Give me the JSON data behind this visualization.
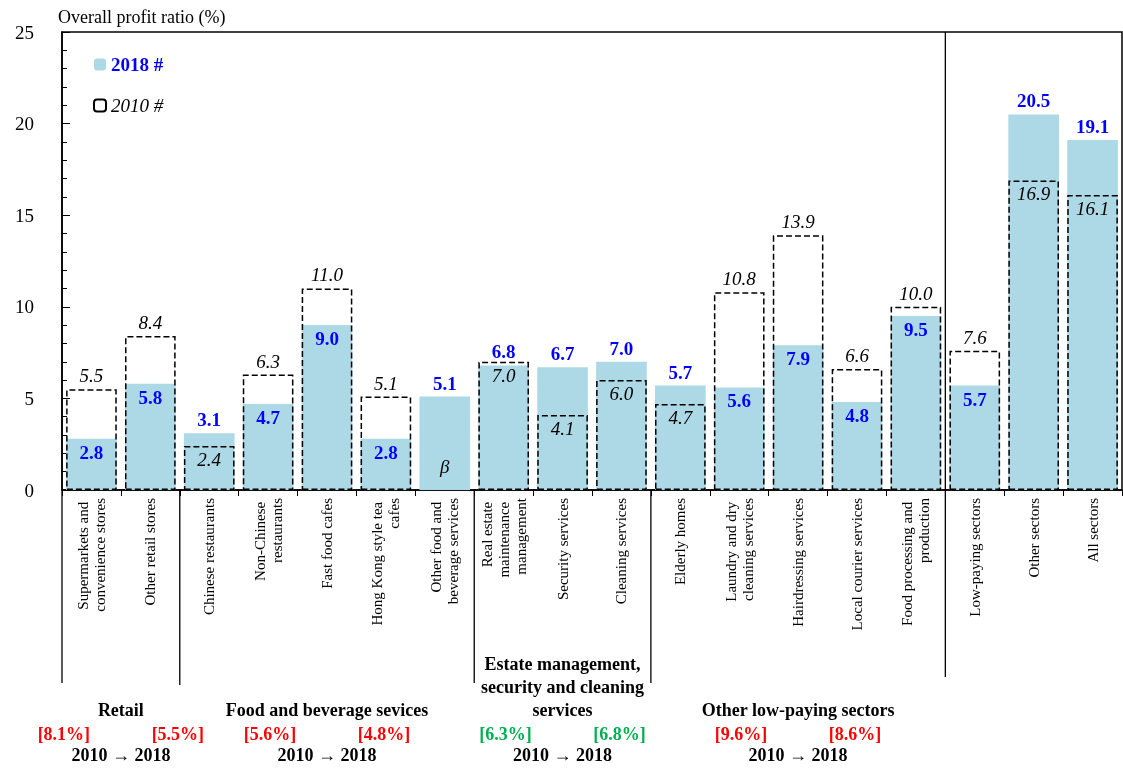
{
  "chart_data": {
    "type": "bar",
    "ylabel": "Overall profit ratio (%)",
    "categories": [
      "Supermarkets and convenience stores",
      "Other retail stores",
      "Chinese restaurants",
      "Non-Chinese restaurants",
      "Fast food cafes",
      "Hong Kong style tea cafes",
      "Other food and beverage services",
      "Real estate maintenance management",
      "Security services",
      "Cleaning services",
      "Elderly homes",
      "Laundry and dry cleaning services",
      "Hairdressing services",
      "Local courier services",
      "Food processing and production",
      "Low-paying sectors",
      "Other sectors",
      "All sectors"
    ],
    "series": [
      {
        "name": "2018 #",
        "color": "#add8e6",
        "values": [
          2.8,
          5.8,
          3.1,
          4.7,
          9.0,
          2.8,
          5.1,
          6.8,
          6.7,
          7.0,
          5.7,
          5.6,
          7.9,
          4.8,
          9.5,
          5.7,
          20.5,
          19.1
        ],
        "value_labels": [
          "2.8",
          "5.8",
          "3.1",
          "4.7",
          "9.0",
          "2.8",
          "5.1",
          "6.8",
          "6.7",
          "7.0",
          "5.7",
          "5.6",
          "7.9",
          "4.8",
          "9.5",
          "5.7",
          "20.5",
          "19.1"
        ]
      },
      {
        "name": "2010 #",
        "color": "#000000",
        "line_style": "dashed",
        "values": [
          5.5,
          8.4,
          2.4,
          6.3,
          11.0,
          5.1,
          null,
          7.0,
          4.1,
          6.0,
          4.7,
          10.8,
          13.9,
          6.6,
          10.0,
          7.6,
          16.9,
          16.1
        ],
        "value_labels": [
          "5.5",
          "8.4",
          "2.4",
          "6.3",
          "11.0",
          "5.1",
          null,
          "7.0",
          "4.1",
          "6.0",
          "4.7",
          "10.8",
          "13.9",
          "6.6",
          "10.0",
          "7.6",
          "16.9",
          "16.1"
        ]
      }
    ],
    "ylim": [
      0,
      25
    ],
    "yticks": [
      0,
      5,
      10,
      15,
      20,
      25
    ],
    "grid": false,
    "legend": "top left",
    "annotations": [
      {
        "text": "β",
        "x": "Other food and beverage services",
        "y": 0
      },
      "Retail",
      "[8.1%]",
      "[5.5%]",
      "2010 → 2018",
      "Food and beverage sevices",
      "[5.6%]",
      "[4.8%]",
      "2010 → 2018",
      "Estate management, security and cleaning services",
      "[6.3%]",
      "[6.8%]",
      "2010 → 2018",
      "Other low-paying sectors",
      "[9.6%]",
      "[8.6%]",
      "2010 → 2018"
    ]
  }
}
